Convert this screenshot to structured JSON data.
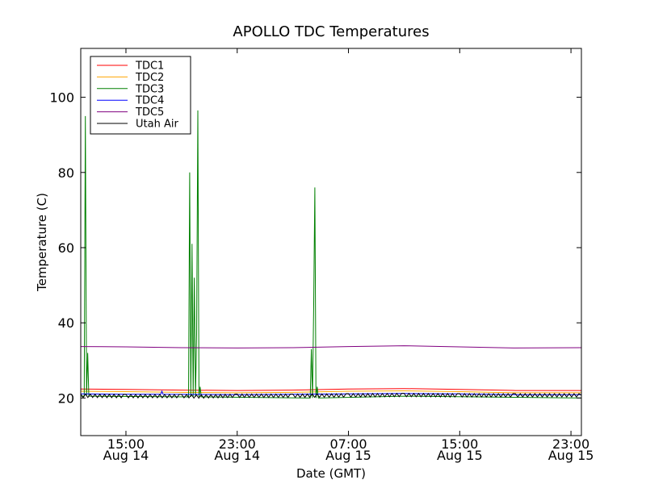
{
  "chart_data": {
    "type": "line",
    "title": "APOLLO TDC Temperatures",
    "xlabel": "Date (GMT)",
    "ylabel": "Temperature (C)",
    "ylim": [
      10,
      113
    ],
    "xlim": [
      "2013-08-14 11:45",
      "2013-08-15 23:45"
    ],
    "x_ticks": [
      {
        "time": "15:00",
        "date": "Aug 14",
        "t": "2013-08-14 15:00"
      },
      {
        "time": "23:00",
        "date": "Aug 14",
        "t": "2013-08-14 23:00"
      },
      {
        "time": "07:00",
        "date": "Aug 15",
        "t": "2013-08-15 07:00"
      },
      {
        "time": "15:00",
        "date": "Aug 15",
        "t": "2013-08-15 15:00"
      },
      {
        "time": "23:00",
        "date": "Aug 15",
        "t": "2013-08-15 23:00"
      }
    ],
    "y_ticks": [
      20,
      40,
      60,
      80,
      100
    ],
    "grid": false,
    "legend_position": "top-left",
    "series": [
      {
        "name": "TDC1",
        "color": "#ff0000",
        "points": [
          [
            "2013-08-14 11:45",
            22.4
          ],
          [
            "2013-08-14 15:00",
            22.3
          ],
          [
            "2013-08-14 19:00",
            22.1
          ],
          [
            "2013-08-14 23:00",
            22.0
          ],
          [
            "2013-08-15 03:00",
            22.1
          ],
          [
            "2013-08-15 07:00",
            22.4
          ],
          [
            "2013-08-15 11:00",
            22.5
          ],
          [
            "2013-08-15 15:00",
            22.3
          ],
          [
            "2013-08-15 19:00",
            22.0
          ],
          [
            "2013-08-15 23:45",
            22.0
          ]
        ]
      },
      {
        "name": "TDC2",
        "color": "#ffa500",
        "points": [
          [
            "2013-08-14 11:45",
            21.8
          ],
          [
            "2013-08-14 15:00",
            21.7
          ],
          [
            "2013-08-14 19:00",
            21.5
          ],
          [
            "2013-08-14 23:00",
            21.4
          ],
          [
            "2013-08-15 03:00",
            21.5
          ],
          [
            "2013-08-15 07:00",
            21.8
          ],
          [
            "2013-08-15 11:00",
            21.9
          ],
          [
            "2013-08-15 15:00",
            21.7
          ],
          [
            "2013-08-15 19:00",
            21.4
          ],
          [
            "2013-08-15 23:45",
            21.4
          ]
        ]
      },
      {
        "name": "TDC3",
        "color": "#008000",
        "points": [
          [
            "2013-08-14 11:45",
            20.5
          ],
          [
            "2013-08-14 12:00",
            20.5
          ],
          [
            "2013-08-14 12:05",
            95
          ],
          [
            "2013-08-14 12:10",
            20.5
          ],
          [
            "2013-08-14 12:15",
            32
          ],
          [
            "2013-08-14 12:20",
            20.5
          ],
          [
            "2013-08-14 19:30",
            20.3
          ],
          [
            "2013-08-14 19:35",
            80
          ],
          [
            "2013-08-14 19:40",
            20.3
          ],
          [
            "2013-08-14 19:45",
            61
          ],
          [
            "2013-08-14 19:50",
            20.3
          ],
          [
            "2013-08-14 19:55",
            52
          ],
          [
            "2013-08-14 20:00",
            20.3
          ],
          [
            "2013-08-14 20:05",
            37
          ],
          [
            "2013-08-14 20:10",
            96.5
          ],
          [
            "2013-08-14 20:15",
            20.3
          ],
          [
            "2013-08-14 20:20",
            23
          ],
          [
            "2013-08-14 20:25",
            20.3
          ],
          [
            "2013-08-15 04:15",
            20.0
          ],
          [
            "2013-08-15 04:20",
            33
          ],
          [
            "2013-08-15 04:25",
            20.0
          ],
          [
            "2013-08-15 04:30",
            45
          ],
          [
            "2013-08-15 04:35",
            76
          ],
          [
            "2013-08-15 04:40",
            20.0
          ],
          [
            "2013-08-15 04:45",
            23
          ],
          [
            "2013-08-15 04:50",
            20.0
          ],
          [
            "2013-08-15 11:00",
            20.5
          ],
          [
            "2013-08-15 23:45",
            20.0
          ]
        ]
      },
      {
        "name": "TDC4",
        "color": "#0000ff",
        "points": [
          [
            "2013-08-14 11:45",
            21.1
          ],
          [
            "2013-08-14 15:00",
            21.0
          ],
          [
            "2013-08-14 17:30",
            21.0
          ],
          [
            "2013-08-14 17:35",
            21.8
          ],
          [
            "2013-08-14 17:40",
            21.0
          ],
          [
            "2013-08-14 23:00",
            20.9
          ],
          [
            "2013-08-15 07:00",
            21.1
          ],
          [
            "2013-08-15 11:00",
            21.2
          ],
          [
            "2013-08-15 15:00",
            21.1
          ],
          [
            "2013-08-15 19:00",
            20.9
          ],
          [
            "2013-08-15 23:45",
            20.9
          ]
        ]
      },
      {
        "name": "TDC5",
        "color": "#800080",
        "points": [
          [
            "2013-08-14 11:45",
            33.7
          ],
          [
            "2013-08-14 15:00",
            33.6
          ],
          [
            "2013-08-14 19:00",
            33.4
          ],
          [
            "2013-08-14 23:00",
            33.3
          ],
          [
            "2013-08-15 03:00",
            33.4
          ],
          [
            "2013-08-15 07:00",
            33.7
          ],
          [
            "2013-08-15 11:00",
            33.9
          ],
          [
            "2013-08-15 15:00",
            33.6
          ],
          [
            "2013-08-15 19:00",
            33.3
          ],
          [
            "2013-08-15 23:45",
            33.4
          ]
        ]
      },
      {
        "name": "Utah Air",
        "color": "#000000",
        "points": [
          [
            "2013-08-14 11:45",
            20.6
          ],
          [
            "2013-08-14 15:00",
            20.5
          ],
          [
            "2013-08-14 19:00",
            20.5
          ],
          [
            "2013-08-14 20:25",
            20.4
          ],
          [
            "2013-08-14 23:00",
            20.6
          ],
          [
            "2013-08-15 03:00",
            20.6
          ],
          [
            "2013-08-15 07:00",
            20.7
          ],
          [
            "2013-08-15 11:00",
            20.8
          ],
          [
            "2013-08-15 15:00",
            20.7
          ],
          [
            "2013-08-15 19:00",
            20.7
          ],
          [
            "2013-08-15 23:45",
            20.7
          ]
        ],
        "wiggle": 0.9
      }
    ]
  }
}
